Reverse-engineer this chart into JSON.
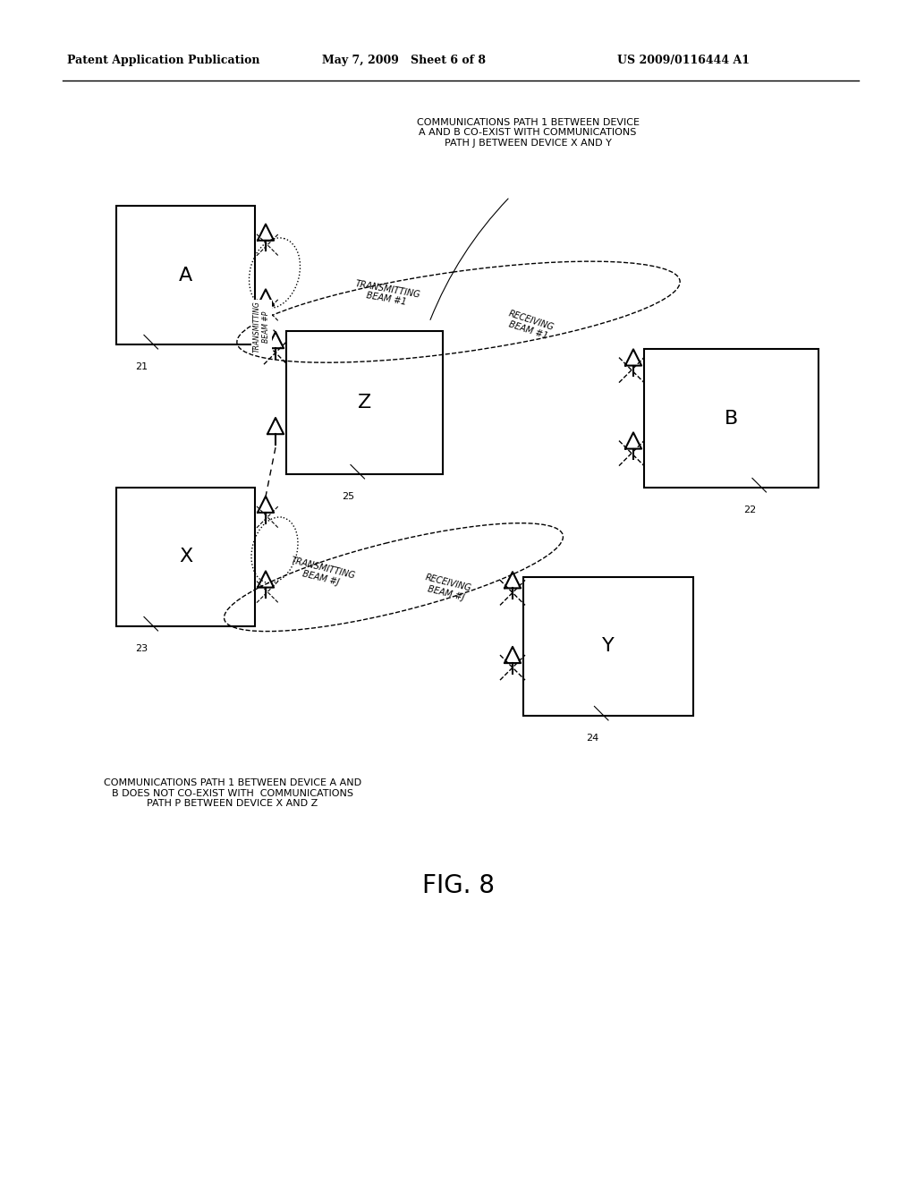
{
  "bg_color": "#ffffff",
  "header_left": "Patent Application Publication",
  "header_mid": "May 7, 2009   Sheet 6 of 8",
  "header_right": "US 2009/0116444 A1",
  "fig_label": "FIG. 8",
  "caption_top": "COMMUNICATIONS PATH 1 BETWEEN DEVICE\nA AND B CO-EXIST WITH COMMUNICATIONS\nPATH J BETWEEN DEVICE X AND Y",
  "caption_bottom": "COMMUNICATIONS PATH 1 BETWEEN DEVICE A AND\nB DOES NOT CO-EXIST WITH  COMMUNICATIONS\nPATH P BETWEEN DEVICE X AND Z",
  "line_color": "#000000",
  "text_color": "#000000"
}
